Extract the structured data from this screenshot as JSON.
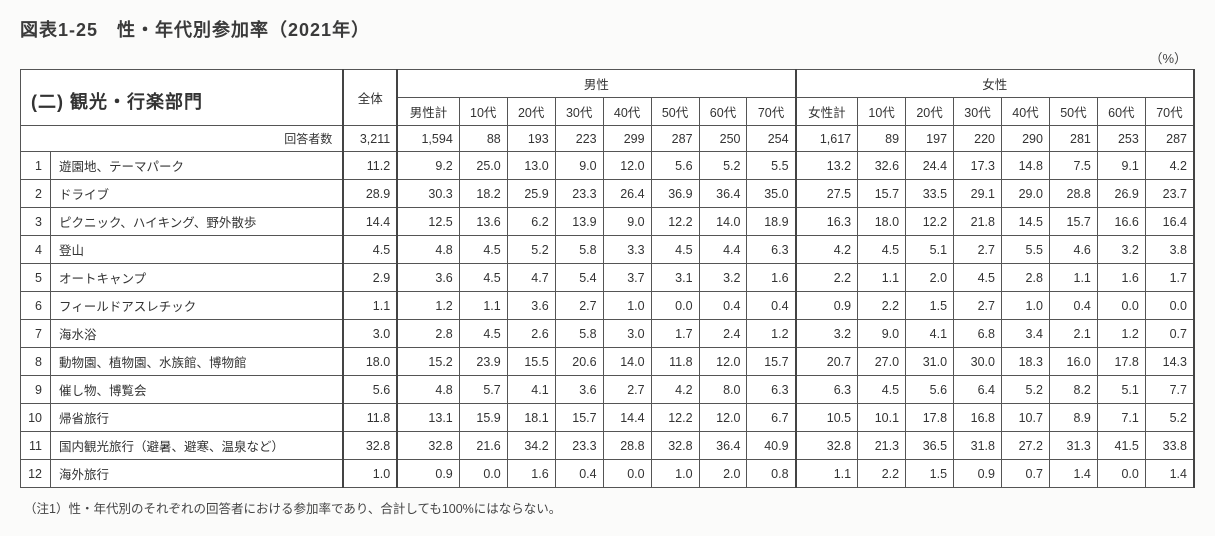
{
  "title": "図表1-25　性・年代別参加率（2021年）",
  "unit": "（%）",
  "section_header": "(二) 観光・行楽部門",
  "respondent_label": "回答者数",
  "columns": {
    "total": "全体",
    "male_group": "男性",
    "female_group": "女性",
    "male_total": "男性計",
    "female_total": "女性計",
    "a10": "10代",
    "a20": "20代",
    "a30": "30代",
    "a40": "40代",
    "a50": "50代",
    "a60": "60代",
    "a70": "70代"
  },
  "respondents": {
    "total": "3,211",
    "male_total": "1,594",
    "m10": "88",
    "m20": "193",
    "m30": "223",
    "m40": "299",
    "m50": "287",
    "m60": "250",
    "m70": "254",
    "female_total": "1,617",
    "f10": "89",
    "f20": "197",
    "f30": "220",
    "f40": "290",
    "f50": "281",
    "f60": "253",
    "f70": "287"
  },
  "rows": [
    {
      "n": "1",
      "name": "遊園地、テーマパーク",
      "t": "11.2",
      "mt": "9.2",
      "m": [
        "25.0",
        "13.0",
        "9.0",
        "12.0",
        "5.6",
        "5.2",
        "5.5"
      ],
      "ft": "13.2",
      "f": [
        "32.6",
        "24.4",
        "17.3",
        "14.8",
        "7.5",
        "9.1",
        "4.2"
      ]
    },
    {
      "n": "2",
      "name": "ドライブ",
      "t": "28.9",
      "mt": "30.3",
      "m": [
        "18.2",
        "25.9",
        "23.3",
        "26.4",
        "36.9",
        "36.4",
        "35.0"
      ],
      "ft": "27.5",
      "f": [
        "15.7",
        "33.5",
        "29.1",
        "29.0",
        "28.8",
        "26.9",
        "23.7"
      ]
    },
    {
      "n": "3",
      "name": "ピクニック、ハイキング、野外散歩",
      "t": "14.4",
      "mt": "12.5",
      "m": [
        "13.6",
        "6.2",
        "13.9",
        "9.0",
        "12.2",
        "14.0",
        "18.9"
      ],
      "ft": "16.3",
      "f": [
        "18.0",
        "12.2",
        "21.8",
        "14.5",
        "15.7",
        "16.6",
        "16.4"
      ]
    },
    {
      "n": "4",
      "name": "登山",
      "t": "4.5",
      "mt": "4.8",
      "m": [
        "4.5",
        "5.2",
        "5.8",
        "3.3",
        "4.5",
        "4.4",
        "6.3"
      ],
      "ft": "4.2",
      "f": [
        "4.5",
        "5.1",
        "2.7",
        "5.5",
        "4.6",
        "3.2",
        "3.8"
      ]
    },
    {
      "n": "5",
      "name": "オートキャンプ",
      "t": "2.9",
      "mt": "3.6",
      "m": [
        "4.5",
        "4.7",
        "5.4",
        "3.7",
        "3.1",
        "3.2",
        "1.6"
      ],
      "ft": "2.2",
      "f": [
        "1.1",
        "2.0",
        "4.5",
        "2.8",
        "1.1",
        "1.6",
        "1.7"
      ]
    },
    {
      "n": "6",
      "name": "フィールドアスレチック",
      "t": "1.1",
      "mt": "1.2",
      "m": [
        "1.1",
        "3.6",
        "2.7",
        "1.0",
        "0.0",
        "0.4",
        "0.4"
      ],
      "ft": "0.9",
      "f": [
        "2.2",
        "1.5",
        "2.7",
        "1.0",
        "0.4",
        "0.0",
        "0.0"
      ]
    },
    {
      "n": "7",
      "name": "海水浴",
      "t": "3.0",
      "mt": "2.8",
      "m": [
        "4.5",
        "2.6",
        "5.8",
        "3.0",
        "1.7",
        "2.4",
        "1.2"
      ],
      "ft": "3.2",
      "f": [
        "9.0",
        "4.1",
        "6.8",
        "3.4",
        "2.1",
        "1.2",
        "0.7"
      ]
    },
    {
      "n": "8",
      "name": "動物園、植物園、水族館、博物館",
      "t": "18.0",
      "mt": "15.2",
      "m": [
        "23.9",
        "15.5",
        "20.6",
        "14.0",
        "11.8",
        "12.0",
        "15.7"
      ],
      "ft": "20.7",
      "f": [
        "27.0",
        "31.0",
        "30.0",
        "18.3",
        "16.0",
        "17.8",
        "14.3"
      ]
    },
    {
      "n": "9",
      "name": "催し物、博覧会",
      "t": "5.6",
      "mt": "4.8",
      "m": [
        "5.7",
        "4.1",
        "3.6",
        "2.7",
        "4.2",
        "8.0",
        "6.3"
      ],
      "ft": "6.3",
      "f": [
        "4.5",
        "5.6",
        "6.4",
        "5.2",
        "8.2",
        "5.1",
        "7.7"
      ]
    },
    {
      "n": "10",
      "name": "帰省旅行",
      "t": "11.8",
      "mt": "13.1",
      "m": [
        "15.9",
        "18.1",
        "15.7",
        "14.4",
        "12.2",
        "12.0",
        "6.7"
      ],
      "ft": "10.5",
      "f": [
        "10.1",
        "17.8",
        "16.8",
        "10.7",
        "8.9",
        "7.1",
        "5.2"
      ]
    },
    {
      "n": "11",
      "name": "国内観光旅行（避暑、避寒、温泉など）",
      "t": "32.8",
      "mt": "32.8",
      "m": [
        "21.6",
        "34.2",
        "23.3",
        "28.8",
        "32.8",
        "36.4",
        "40.9"
      ],
      "ft": "32.8",
      "f": [
        "21.3",
        "36.5",
        "31.8",
        "27.2",
        "31.3",
        "41.5",
        "33.8"
      ]
    },
    {
      "n": "12",
      "name": "海外旅行",
      "t": "1.0",
      "mt": "0.9",
      "m": [
        "0.0",
        "1.6",
        "0.4",
        "0.0",
        "1.0",
        "2.0",
        "0.8"
      ],
      "ft": "1.1",
      "f": [
        "2.2",
        "1.5",
        "0.9",
        "0.7",
        "1.4",
        "0.0",
        "1.4"
      ]
    }
  ],
  "note": "（注1）性・年代別のそれぞれの回答者における参加率であり、合計しても100%にはならない。"
}
